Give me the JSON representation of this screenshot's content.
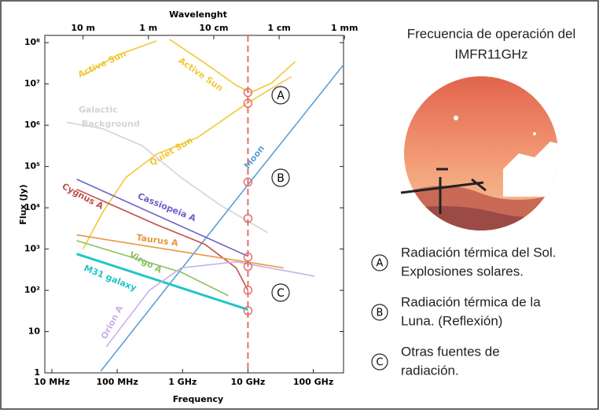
{
  "chart_data": {
    "type": "line",
    "log_scale": true,
    "title_top": "Wavelenght",
    "xlabel": "Frequency",
    "ylabel": "Flux (Jy)",
    "xlim": [
      7800000,
      290000000000
    ],
    "ylim": [
      1,
      150000000
    ],
    "xticks": [
      {
        "value": 10000000,
        "label": "10 MHz"
      },
      {
        "value": 100000000,
        "label": "100 MHz"
      },
      {
        "value": 1000000000,
        "label": "1 GHz"
      },
      {
        "value": 10000000000,
        "label": "10 GHz"
      },
      {
        "value": 100000000000,
        "label": "100 GHz"
      }
    ],
    "x2ticks": [
      {
        "value": 30000000,
        "label": "10 m"
      },
      {
        "value": 300000000,
        "label": "1 m"
      },
      {
        "value": 3000000000,
        "label": "10 cm"
      },
      {
        "value": 30000000000,
        "label": "1 cm"
      },
      {
        "value": 300000000000,
        "label": "1 mm"
      }
    ],
    "yticks": [
      1,
      10,
      {
        "value": 100,
        "label": "10²"
      },
      {
        "value": 1000,
        "label": "10³"
      },
      {
        "value": 10000,
        "label": "10⁴"
      },
      {
        "value": 100000,
        "label": "10⁵"
      },
      {
        "value": 1000000,
        "label": "10⁶"
      },
      {
        "value": 10000000,
        "label": "10⁷"
      },
      {
        "value": 100000000,
        "label": "10⁸"
      }
    ],
    "series": [
      {
        "name": "Active Sun",
        "color": "#f0c93a",
        "x": [
          30000000,
          100000000,
          400000000
        ],
        "values": [
          16000000,
          50000000,
          110000000
        ]
      },
      {
        "name": "Active Sun",
        "color": "#f0c93a",
        "x": [
          630000000,
          2200000000,
          6600000000,
          11000000000,
          23000000000,
          53000000000
        ],
        "values": [
          120000000,
          32000000,
          9300000,
          6200000,
          10500000,
          35000000
        ]
      },
      {
        "name": "Quiet Sun",
        "color": "#f0c93a",
        "x": [
          30000000,
          59000000,
          135000000,
          400000000,
          1650000000,
          10000000000,
          46000000000
        ],
        "values": [
          1000,
          7500,
          54000,
          200000,
          490000,
          3500000,
          15000000
        ]
      },
      {
        "name": "Galactic Background",
        "color": "#d4d4d4",
        "x": [
          17000000,
          59000000,
          240000000,
          950000000,
          3800000000,
          20000000000
        ],
        "values": [
          1170000,
          830000,
          320000,
          54000,
          11500,
          2500
        ]
      },
      {
        "name": "Moon",
        "color": "#5aa0d8",
        "x": [
          56000000,
          10000000000,
          290000000000
        ],
        "values": [
          1.1,
          36000,
          29000000
        ]
      },
      {
        "name": "Cassiopeia A",
        "color": "#6a62c8",
        "x": [
          24000000,
          10000000000
        ],
        "values": [
          49000,
          670
        ]
      },
      {
        "name": "Cygnus A",
        "color": "#c0504d",
        "x": [
          24000000,
          400000000,
          2200000000,
          6600000000,
          10000000000
        ],
        "values": [
          28000,
          3900,
          1300,
          350,
          100
        ]
      },
      {
        "name": "Taurus A",
        "color": "#e8973d",
        "x": [
          24000000,
          35000000000
        ],
        "values": [
          2200,
          350
        ]
      },
      {
        "name": "Virgo A",
        "color": "#8cc063",
        "x": [
          24000000,
          950000000,
          5000000000
        ],
        "values": [
          1600,
          275,
          74
        ]
      },
      {
        "name": "M31 galaxy",
        "color": "#20c5c8",
        "x": [
          24000000,
          10000000000
        ],
        "values": [
          760,
          34
        ]
      },
      {
        "name": "Orion A",
        "color": "#c8b0e8",
        "x": [
          68000000,
          310000000,
          950000000,
          6600000000,
          105000000000
        ],
        "values": [
          4.3,
          100,
          350,
          490,
          220
        ]
      }
    ],
    "marker_line": {
      "x": 10000000000,
      "color": "#e07070",
      "values": [
        6200000,
        3400000,
        42000,
        5500,
        640,
        380,
        100,
        32
      ]
    },
    "callouts": [
      "A",
      "B",
      "C"
    ]
  },
  "panel": {
    "title": [
      "Frecuencia de operación del",
      "IMFR11GHz"
    ],
    "items": [
      {
        "letter": "A",
        "lines": [
          "Radiación térmica del Sol.",
          "Explosiones solares."
        ]
      },
      {
        "letter": "B",
        "lines": [
          "Radiación térmica de la",
          "Luna. (Reflexión)"
        ]
      },
      {
        "letter": "C",
        "lines": [
          "Otras fuentes de",
          "radiación."
        ]
      }
    ]
  }
}
